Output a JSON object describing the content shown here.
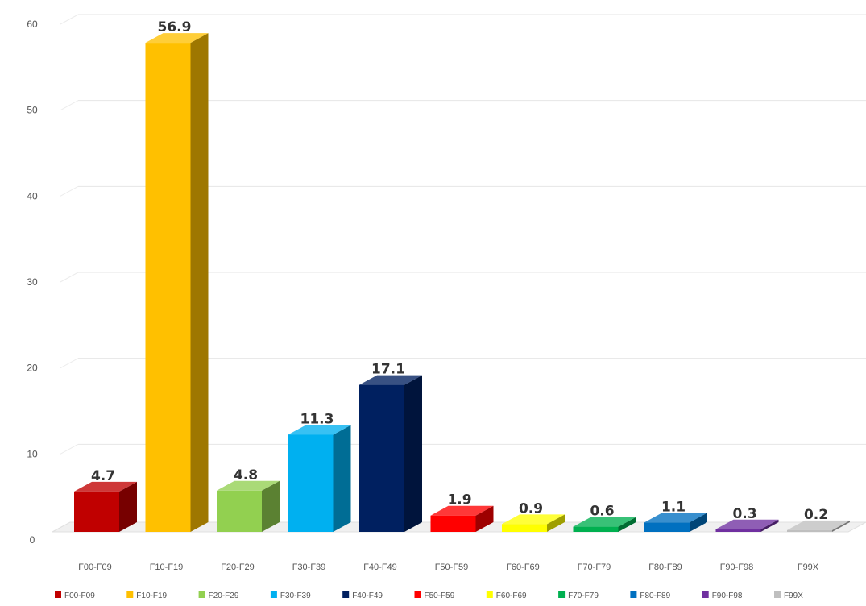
{
  "chart_data": {
    "type": "bar",
    "title": "",
    "xlabel": "",
    "ylabel": "",
    "ylim": [
      0,
      60
    ],
    "yticks": [
      0,
      10,
      20,
      30,
      40,
      50,
      60
    ],
    "grid": true,
    "legend_position": "bottom",
    "three_d": true,
    "categories": [
      "F00-F09",
      "F10-F19",
      "F20-F29",
      "F30-F39",
      "F40-F49",
      "F50-F59",
      "F60-F69",
      "F70-F79",
      "F80-F89",
      "F90-F98",
      "F99X"
    ],
    "values": [
      4.7,
      56.9,
      4.8,
      11.3,
      17.1,
      1.9,
      0.9,
      0.6,
      1.1,
      0.3,
      0.2
    ],
    "value_labels": [
      "4.7",
      "56.9",
      "4.8",
      "11.3",
      "17.1",
      "1.9",
      "0.9",
      "0.6",
      "1.1",
      "0.3",
      "0.2"
    ],
    "colors": [
      "#c00000",
      "#ffc000",
      "#92d050",
      "#00b0f0",
      "#002060",
      "#ff0000",
      "#ffff00",
      "#00b050",
      "#0070c0",
      "#7030a0",
      "#bfbfbf"
    ],
    "legend": [
      "F00-F09",
      "F10-F19",
      "F20-F29",
      "F30-F39",
      "F40-F49",
      "F50-F59",
      "F60-F69",
      "F70-F79",
      "F80-F89",
      "F90-F98",
      "F99X"
    ]
  }
}
